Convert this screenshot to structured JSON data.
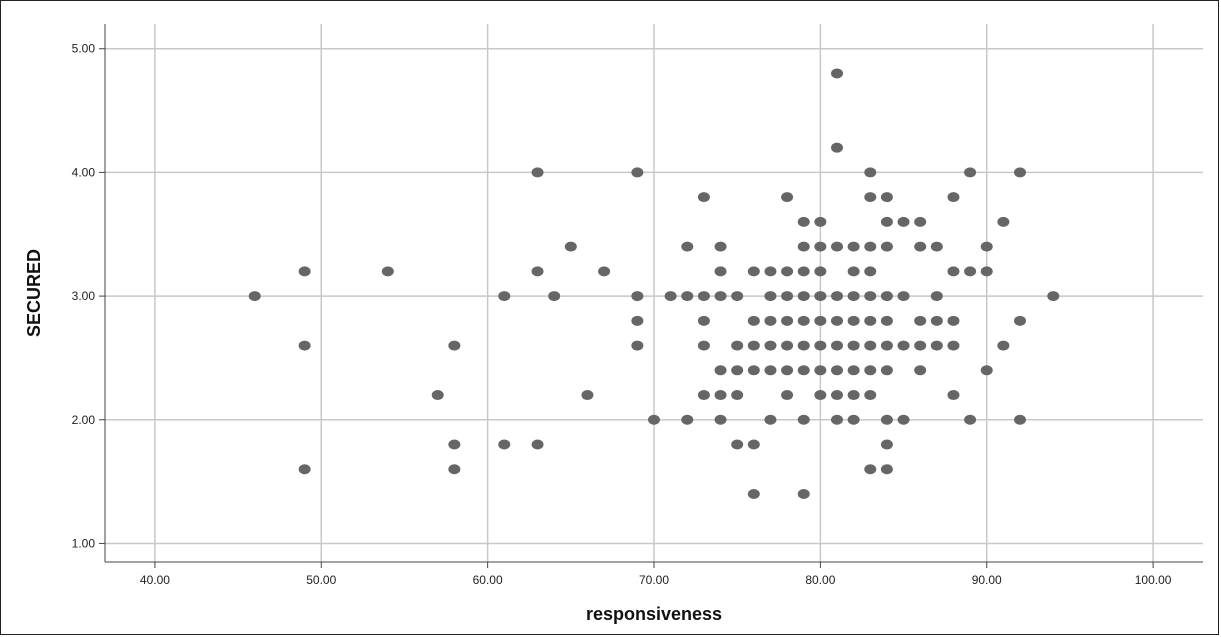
{
  "chart_data": {
    "type": "scatter",
    "title": "",
    "xlabel": "responsiveness",
    "ylabel": "SECURED",
    "xlim": [
      37,
      103
    ],
    "ylim": [
      0.85,
      5.2
    ],
    "x_ticks": [
      "40.00",
      "50.00",
      "60.00",
      "70.00",
      "80.00",
      "90.00",
      "100.00"
    ],
    "y_ticks": [
      "1.00",
      "2.00",
      "3.00",
      "4.00",
      "5.00"
    ],
    "grid": true,
    "marker_color": "#666666",
    "grid_color": "#c8c8c8",
    "points": [
      [
        46,
        3.0
      ],
      [
        49,
        3.2
      ],
      [
        49,
        2.6
      ],
      [
        49,
        1.6
      ],
      [
        54,
        3.2
      ],
      [
        57,
        2.2
      ],
      [
        58,
        2.6
      ],
      [
        58,
        1.8
      ],
      [
        58,
        1.6
      ],
      [
        61,
        3.0
      ],
      [
        61,
        1.8
      ],
      [
        63,
        4.0
      ],
      [
        63,
        3.2
      ],
      [
        63,
        1.8
      ],
      [
        64,
        3.0
      ],
      [
        65,
        3.4
      ],
      [
        66,
        2.2
      ],
      [
        67,
        3.2
      ],
      [
        69,
        4.0
      ],
      [
        69,
        3.0
      ],
      [
        69,
        2.8
      ],
      [
        69,
        2.6
      ],
      [
        70,
        2.0
      ],
      [
        71,
        3.0
      ],
      [
        72,
        3.4
      ],
      [
        72,
        3.0
      ],
      [
        72,
        2.0
      ],
      [
        73,
        3.8
      ],
      [
        73,
        3.0
      ],
      [
        73,
        2.8
      ],
      [
        73,
        2.6
      ],
      [
        73,
        2.2
      ],
      [
        74,
        3.4
      ],
      [
        74,
        3.2
      ],
      [
        74,
        3.0
      ],
      [
        74,
        2.4
      ],
      [
        74,
        2.2
      ],
      [
        74,
        2.0
      ],
      [
        75,
        3.0
      ],
      [
        75,
        2.6
      ],
      [
        75,
        2.4
      ],
      [
        75,
        2.2
      ],
      [
        75,
        1.8
      ],
      [
        76,
        3.2
      ],
      [
        76,
        2.8
      ],
      [
        76,
        2.6
      ],
      [
        76,
        2.4
      ],
      [
        76,
        1.8
      ],
      [
        76,
        1.4
      ],
      [
        77,
        3.2
      ],
      [
        77,
        3.0
      ],
      [
        77,
        2.8
      ],
      [
        77,
        2.6
      ],
      [
        77,
        2.4
      ],
      [
        77,
        2.0
      ],
      [
        78,
        3.8
      ],
      [
        78,
        3.2
      ],
      [
        78,
        3.0
      ],
      [
        78,
        2.8
      ],
      [
        78,
        2.6
      ],
      [
        78,
        2.4
      ],
      [
        78,
        2.2
      ],
      [
        79,
        3.6
      ],
      [
        79,
        3.4
      ],
      [
        79,
        3.2
      ],
      [
        79,
        3.0
      ],
      [
        79,
        2.8
      ],
      [
        79,
        2.6
      ],
      [
        79,
        2.4
      ],
      [
        79,
        2.0
      ],
      [
        79,
        1.4
      ],
      [
        80,
        3.6
      ],
      [
        80,
        3.4
      ],
      [
        80,
        3.2
      ],
      [
        80,
        3.0
      ],
      [
        80,
        2.8
      ],
      [
        80,
        2.6
      ],
      [
        80,
        2.4
      ],
      [
        80,
        2.2
      ],
      [
        81,
        4.8
      ],
      [
        81,
        4.2
      ],
      [
        81,
        3.4
      ],
      [
        81,
        3.0
      ],
      [
        81,
        2.8
      ],
      [
        81,
        2.6
      ],
      [
        81,
        2.4
      ],
      [
        81,
        2.2
      ],
      [
        81,
        2.0
      ],
      [
        82,
        3.4
      ],
      [
        82,
        3.2
      ],
      [
        82,
        3.0
      ],
      [
        82,
        2.8
      ],
      [
        82,
        2.6
      ],
      [
        82,
        2.4
      ],
      [
        82,
        2.2
      ],
      [
        82,
        2.0
      ],
      [
        83,
        4.0
      ],
      [
        83,
        3.8
      ],
      [
        83,
        3.4
      ],
      [
        83,
        3.2
      ],
      [
        83,
        3.0
      ],
      [
        83,
        2.8
      ],
      [
        83,
        2.6
      ],
      [
        83,
        2.4
      ],
      [
        83,
        2.2
      ],
      [
        83,
        1.6
      ],
      [
        84,
        3.8
      ],
      [
        84,
        3.6
      ],
      [
        84,
        3.4
      ],
      [
        84,
        3.0
      ],
      [
        84,
        2.8
      ],
      [
        84,
        2.6
      ],
      [
        84,
        2.4
      ],
      [
        84,
        2.0
      ],
      [
        84,
        1.8
      ],
      [
        84,
        1.6
      ],
      [
        85,
        3.6
      ],
      [
        85,
        3.0
      ],
      [
        85,
        2.6
      ],
      [
        85,
        2.0
      ],
      [
        86,
        3.6
      ],
      [
        86,
        3.4
      ],
      [
        86,
        2.8
      ],
      [
        86,
        2.6
      ],
      [
        86,
        2.4
      ],
      [
        87,
        3.4
      ],
      [
        87,
        3.0
      ],
      [
        87,
        2.8
      ],
      [
        87,
        2.6
      ],
      [
        88,
        3.8
      ],
      [
        88,
        3.2
      ],
      [
        88,
        2.8
      ],
      [
        88,
        2.6
      ],
      [
        88,
        2.2
      ],
      [
        89,
        4.0
      ],
      [
        89,
        3.2
      ],
      [
        89,
        2.0
      ],
      [
        90,
        3.4
      ],
      [
        90,
        3.2
      ],
      [
        90,
        2.4
      ],
      [
        91,
        3.6
      ],
      [
        91,
        2.6
      ],
      [
        92,
        4.0
      ],
      [
        92,
        2.8
      ],
      [
        92,
        2.0
      ],
      [
        94,
        3.0
      ]
    ]
  }
}
